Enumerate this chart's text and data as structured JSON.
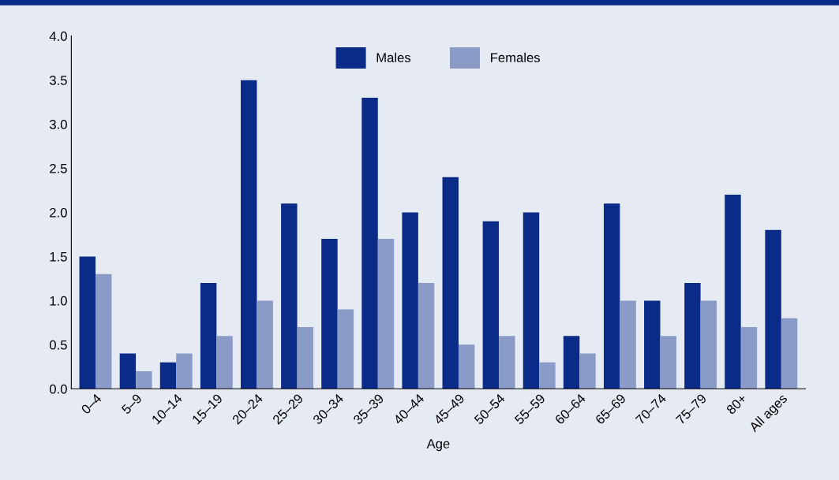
{
  "chart_data": {
    "type": "bar",
    "xlabel": "Age",
    "categories": [
      "0–4",
      "5–9",
      "10–14",
      "15–19",
      "20–24",
      "25–29",
      "30–34",
      "35–39",
      "40–44",
      "45–49",
      "50–54",
      "55–59",
      "60–64",
      "65–69",
      "70–74",
      "75–79",
      "80+",
      "All ages"
    ],
    "series": [
      {
        "name": "Males",
        "color": "#0a2b87",
        "values": [
          1.5,
          0.4,
          0.3,
          1.2,
          3.5,
          2.1,
          1.7,
          3.3,
          2.0,
          2.4,
          1.9,
          2.0,
          0.6,
          2.1,
          1.0,
          1.2,
          2.2,
          1.8
        ]
      },
      {
        "name": "Females",
        "color": "#8a9bc8",
        "values": [
          1.3,
          0.2,
          0.4,
          0.6,
          1.0,
          0.7,
          0.9,
          1.7,
          1.2,
          0.5,
          0.6,
          0.3,
          0.4,
          1.0,
          0.6,
          1.0,
          0.7,
          0.8
        ]
      }
    ],
    "ylim": [
      0,
      4.0
    ],
    "yticks": [
      {
        "value": 0,
        "label": "0.0"
      },
      {
        "value": 0.5,
        "label": "0.5"
      },
      {
        "value": 1,
        "label": "1.0"
      },
      {
        "value": 1.5,
        "label": "1.5"
      },
      {
        "value": 2,
        "label": "2.0"
      },
      {
        "value": 2.5,
        "label": "2.5"
      },
      {
        "value": 3,
        "label": "3.0"
      },
      {
        "value": 3.5,
        "label": "3.5"
      },
      {
        "value": 4,
        "label": "4.0"
      }
    ],
    "grid": false,
    "legend": "top"
  }
}
